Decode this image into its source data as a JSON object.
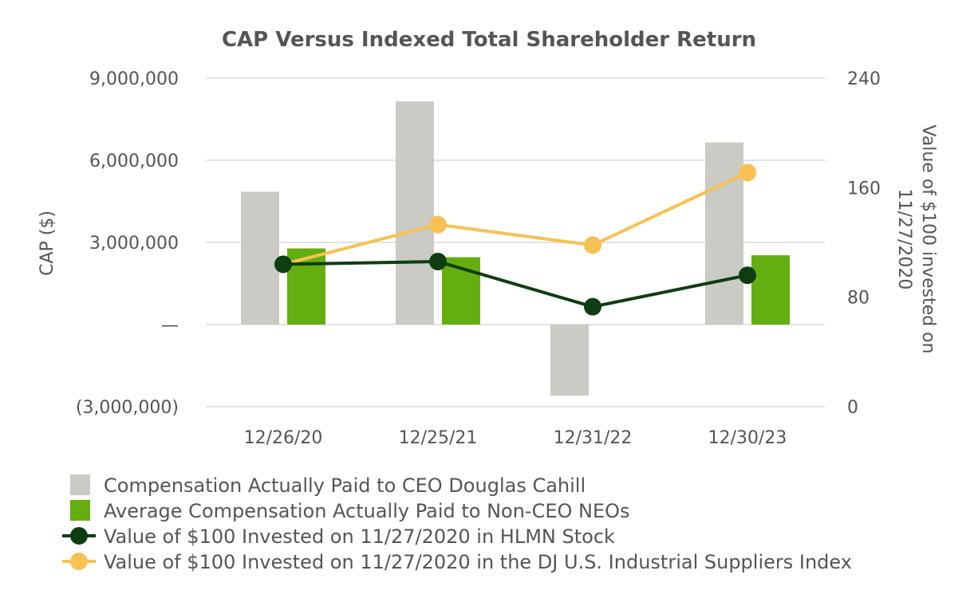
{
  "chart_data": {
    "type": "bar",
    "title": "CAP Versus Indexed Total Shareholder Return",
    "categories": [
      "12/26/20",
      "12/25/21",
      "12/31/22",
      "12/30/23"
    ],
    "ylabel": "CAP ($)",
    "y2label_line1": "Value of $100 invested on",
    "y2label_line2": "11/27/2020",
    "ylim": [
      -3000000,
      9000000
    ],
    "y2lim": [
      0,
      240
    ],
    "yticks": [
      -3000000,
      0,
      3000000,
      6000000,
      9000000
    ],
    "ytick_labels": [
      "(3,000,000)",
      "—",
      "3,000,000",
      "6,000,000",
      "9,000,000"
    ],
    "y2ticks": [
      0,
      80,
      160,
      240
    ],
    "y2tick_labels": [
      "0",
      "80",
      "160",
      "240"
    ],
    "grid": true,
    "series": [
      {
        "name": "Compensation Actually Paid to CEO Douglas Cahill",
        "kind": "bar",
        "axis": "left",
        "color": "#c9cbc4",
        "values": [
          4850000,
          8150000,
          -2600000,
          6650000
        ]
      },
      {
        "name": "Average Compensation Actually Paid to Non-CEO NEOs",
        "kind": "bar",
        "axis": "left",
        "color": "#65ae0f",
        "values": [
          2780000,
          2460000,
          0,
          2530000
        ]
      },
      {
        "name": "Value of $100 Invested on 11/27/2020 in HLMN Stock",
        "kind": "line",
        "axis": "right",
        "color": "#0f3d12",
        "values": [
          104,
          106,
          73,
          96
        ]
      },
      {
        "name": "Value of $100 Invested on 11/27/2020 in the DJ U.S. Industrial Suppliers Index",
        "kind": "line",
        "axis": "right",
        "color": "#f7c154",
        "values": [
          104,
          133,
          118,
          171
        ]
      }
    ]
  }
}
